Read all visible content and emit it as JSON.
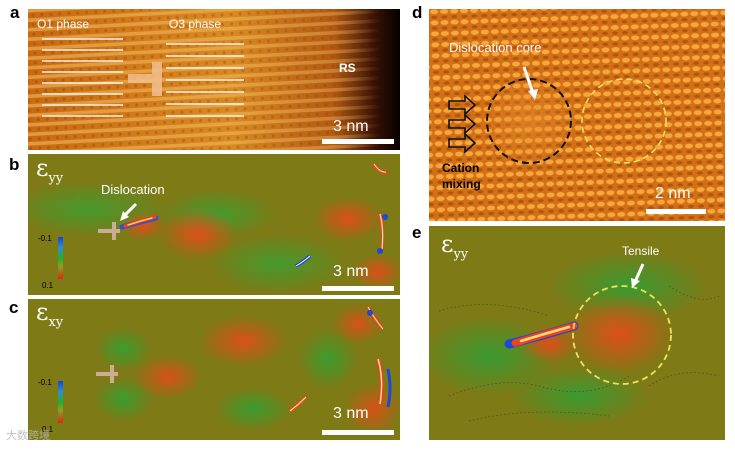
{
  "panel_a": {
    "letter": "a",
    "label_o1": "O1 phase",
    "label_o3": "O3 phase",
    "label_rs": "RS",
    "scale": "3 nm"
  },
  "panel_b": {
    "letter": "b",
    "symbol": "ε",
    "symbol_sub": "yy",
    "label_dislocation": "Dislocation",
    "colorbar_top": "-0.1",
    "colorbar_bottom": "0.1",
    "scale": "3 nm"
  },
  "panel_c": {
    "letter": "c",
    "symbol": "ε",
    "symbol_sub": "xy",
    "colorbar_top": "-0.1",
    "colorbar_bottom": "0.1",
    "scale": "3 nm"
  },
  "panel_d": {
    "letter": "d",
    "label_core": "Dislocation core",
    "label_cation_1": "Cation",
    "label_cation_2": "mixing",
    "scale": "2 nm"
  },
  "panel_e": {
    "letter": "e",
    "symbol": "ε",
    "symbol_sub": "yy",
    "label_tensile": "Tensile"
  },
  "watermark": "大数跨境",
  "colors": {
    "haadf_orange": "#d87a1a",
    "strain_bg": "#7e7a16",
    "compress_red": "#e23a18",
    "tensile_green": "#3aa032",
    "colorbar_blue": "#1740e0"
  }
}
